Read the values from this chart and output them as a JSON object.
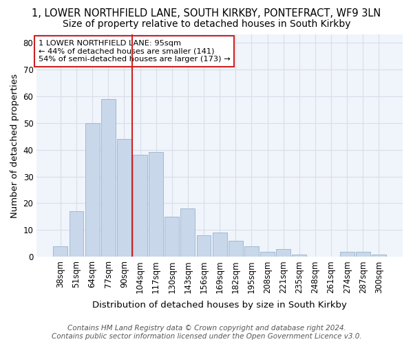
{
  "title_line1": "1, LOWER NORTHFIELD LANE, SOUTH KIRKBY, PONTEFRACT, WF9 3LN",
  "title_line2": "Size of property relative to detached houses in South Kirkby",
  "xlabel": "Distribution of detached houses by size in South Kirkby",
  "ylabel": "Number of detached properties",
  "categories": [
    "38sqm",
    "51sqm",
    "64sqm",
    "77sqm",
    "90sqm",
    "104sqm",
    "117sqm",
    "130sqm",
    "143sqm",
    "156sqm",
    "169sqm",
    "182sqm",
    "195sqm",
    "208sqm",
    "221sqm",
    "235sqm",
    "248sqm",
    "261sqm",
    "274sqm",
    "287sqm",
    "300sqm"
  ],
  "values": [
    4,
    17,
    50,
    59,
    44,
    38,
    39,
    15,
    18,
    8,
    9,
    6,
    4,
    2,
    3,
    1,
    0,
    0,
    2,
    2,
    1
  ],
  "bar_color": "#c8d8ea",
  "bar_edge_color": "#a0b8d0",
  "vline_x": 4.5,
  "vline_color": "#cc2222",
  "annotation_line1": "1 LOWER NORTHFIELD LANE: 95sqm",
  "annotation_line2": "← 44% of detached houses are smaller (141)",
  "annotation_line3": "54% of semi-detached houses are larger (173) →",
  "ylim": [
    0,
    83
  ],
  "yticks": [
    0,
    10,
    20,
    30,
    40,
    50,
    60,
    70,
    80
  ],
  "footer_line1": "Contains HM Land Registry data © Crown copyright and database right 2024.",
  "footer_line2": "Contains public sector information licensed under the Open Government Licence v3.0.",
  "background_color": "#ffffff",
  "plot_bg_color": "#f0f4fb",
  "grid_color": "#d8dde8",
  "title_fontsize": 10.5,
  "subtitle_fontsize": 10,
  "axis_label_fontsize": 9.5,
  "tick_fontsize": 8.5,
  "footer_fontsize": 7.5
}
